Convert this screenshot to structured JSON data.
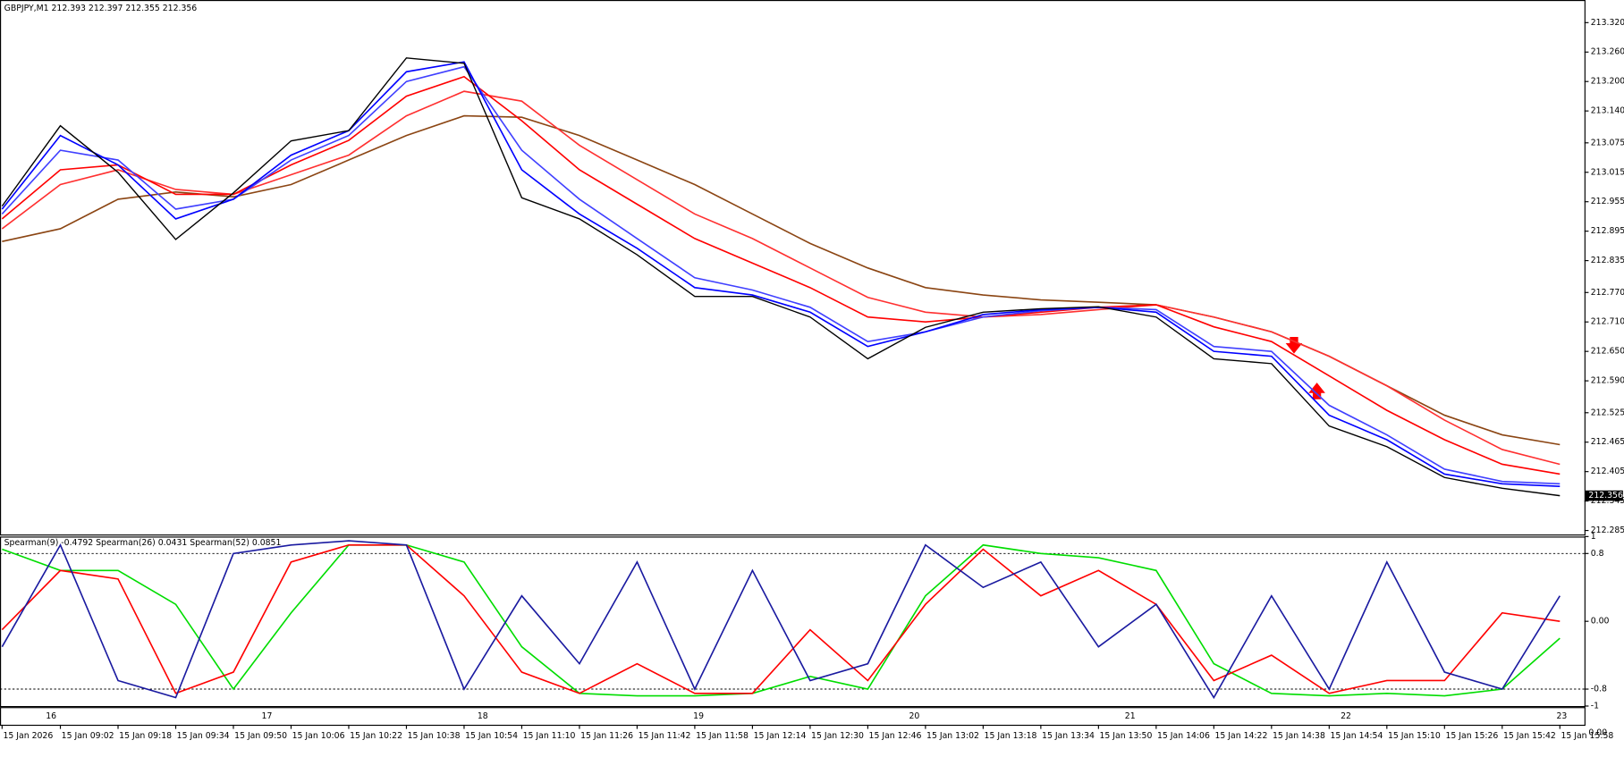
{
  "chart_data": [
    {
      "type": "line",
      "title": "GBPJPY,M1  212.393 212.397 212.355 212.356",
      "categories": [
        "15 Jan 2026",
        "15 Jan 09:02",
        "15 Jan 09:18",
        "15 Jan 09:34",
        "15 Jan 09:50",
        "15 Jan 10:06",
        "15 Jan 10:22",
        "15 Jan 10:38",
        "15 Jan 10:54",
        "15 Jan 11:10",
        "15 Jan 11:26",
        "15 Jan 11:42",
        "15 Jan 11:58",
        "15 Jan 12:14",
        "15 Jan 12:30",
        "15 Jan 12:46",
        "15 Jan 13:02",
        "15 Jan 13:18",
        "15 Jan 13:34",
        "15 Jan 13:50",
        "15 Jan 14:06",
        "15 Jan 14:22",
        "15 Jan 14:38",
        "15 Jan 14:54",
        "15 Jan 15:10",
        "15 Jan 15:26",
        "15 Jan 15:42",
        "15 Jan 15:58"
      ],
      "series": [
        {
          "color": "#8b4513",
          "values": [
            212.874,
            212.9,
            212.96,
            212.975,
            212.965,
            212.99,
            213.04,
            213.09,
            213.13,
            213.127,
            213.09,
            213.04,
            212.99,
            212.93,
            212.87,
            212.82,
            212.78,
            212.765,
            212.755,
            212.75,
            212.745,
            212.72,
            212.69,
            212.64,
            212.58,
            212.52,
            212.48,
            212.46
          ]
        },
        {
          "color": "#ff3030",
          "values": [
            212.9,
            212.99,
            213.02,
            212.98,
            212.97,
            213.01,
            213.05,
            213.13,
            213.18,
            213.16,
            213.07,
            213.0,
            212.93,
            212.88,
            212.82,
            212.76,
            212.73,
            212.72,
            212.725,
            212.735,
            212.745,
            212.72,
            212.69,
            212.64,
            212.58,
            212.51,
            212.45,
            212.42
          ]
        },
        {
          "color": "#ff0000",
          "values": [
            212.92,
            213.02,
            213.03,
            212.97,
            212.97,
            213.03,
            213.08,
            213.17,
            213.21,
            213.12,
            213.02,
            212.95,
            212.88,
            212.83,
            212.78,
            212.72,
            212.71,
            212.72,
            212.73,
            212.74,
            212.745,
            212.7,
            212.67,
            212.6,
            212.53,
            212.47,
            212.42,
            212.4
          ]
        },
        {
          "color": "#4040ff",
          "values": [
            212.93,
            213.06,
            213.04,
            212.94,
            212.96,
            213.04,
            213.09,
            213.2,
            213.23,
            213.06,
            212.96,
            212.88,
            212.8,
            212.775,
            212.74,
            212.67,
            212.69,
            212.72,
            212.733,
            212.74,
            212.735,
            212.66,
            212.65,
            212.54,
            212.48,
            212.41,
            212.385,
            212.38
          ]
        },
        {
          "color": "#0000ff",
          "values": [
            212.94,
            213.09,
            213.03,
            212.92,
            212.96,
            213.05,
            213.1,
            213.22,
            213.24,
            213.02,
            212.93,
            212.86,
            212.78,
            212.765,
            212.73,
            212.66,
            212.69,
            212.725,
            212.735,
            212.74,
            212.73,
            212.65,
            212.64,
            212.52,
            212.47,
            212.4,
            212.38,
            212.375
          ]
        },
        {
          "color": "#000000",
          "values": [
            212.946,
            213.11,
            213.015,
            212.878,
            212.973,
            213.079,
            213.1,
            213.248,
            213.237,
            212.963,
            212.92,
            212.847,
            212.762,
            212.762,
            212.72,
            212.635,
            212.699,
            212.73,
            212.737,
            212.741,
            212.72,
            212.635,
            212.625,
            212.498,
            212.456,
            212.393,
            212.371,
            212.356
          ]
        }
      ],
      "ylim": [
        212.279,
        213.364
      ],
      "yticks": [
        {
          "value": 213.32,
          "label": "213.320"
        },
        {
          "value": 213.26,
          "label": "213.260"
        },
        {
          "value": 213.2,
          "label": "213.200"
        },
        {
          "value": 213.14,
          "label": "213.140"
        },
        213.075,
        213.015,
        212.955,
        212.895,
        212.835,
        {
          "value": 212.77,
          "label": "212.770"
        },
        {
          "value": 212.71,
          "label": "212.710"
        },
        {
          "value": 212.65,
          "label": "212.650"
        },
        {
          "value": 212.59,
          "label": "212.590"
        },
        212.525,
        212.465,
        212.405,
        212.345,
        212.285
      ],
      "last_price": 212.356
    },
    {
      "type": "line",
      "title": "Spearman(9) -0.4792  Spearman(26) 0.0431  Spearman(52) 0.0851",
      "series": [
        {
          "color": "#00dd00",
          "values": [
            0.85,
            0.6,
            0.6,
            0.2,
            -0.8,
            0.1,
            0.9,
            0.9,
            0.7,
            -0.3,
            -0.85,
            -0.88,
            -0.88,
            -0.85,
            -0.65,
            -0.8,
            0.3,
            0.9,
            0.8,
            0.75,
            0.6,
            -0.5,
            -0.85,
            -0.88,
            -0.85,
            -0.88,
            -0.8,
            -0.2
          ]
        },
        {
          "color": "#ff0000",
          "values": [
            -0.1,
            0.6,
            0.5,
            -0.85,
            -0.6,
            0.7,
            0.9,
            0.9,
            0.3,
            -0.6,
            -0.85,
            -0.5,
            -0.85,
            -0.85,
            -0.1,
            -0.7,
            0.2,
            0.85,
            0.3,
            0.6,
            0.2,
            -0.7,
            -0.4,
            -0.85,
            -0.7,
            -0.7,
            0.1,
            0.0
          ]
        },
        {
          "color": "#1a1aa0",
          "values": [
            -0.3,
            0.9,
            -0.7,
            -0.9,
            0.8,
            0.9,
            0.95,
            0.9,
            -0.8,
            0.3,
            -0.5,
            0.7,
            -0.8,
            0.6,
            -0.7,
            -0.5,
            0.9,
            0.4,
            0.7,
            -0.3,
            0.2,
            -0.9,
            0.3,
            -0.8,
            0.7,
            -0.6,
            -0.8,
            0.3
          ]
        }
      ],
      "ylim": [
        -1,
        1
      ],
      "yticks": [
        1,
        0.8,
        {
          "value": 0,
          "label": "0.00"
        },
        -0.8,
        -1
      ],
      "levels": [
        0.8,
        -0.8
      ]
    }
  ],
  "period_labels": [
    16,
    17,
    18,
    19,
    20,
    21,
    22,
    23
  ],
  "corner_label": "0.00"
}
